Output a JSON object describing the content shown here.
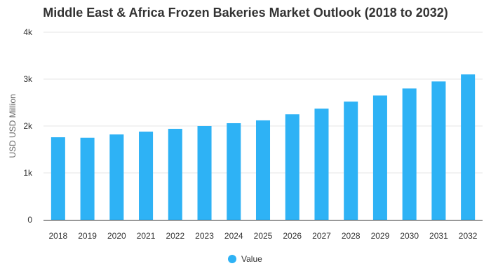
{
  "chart_data": {
    "type": "bar",
    "title": "Middle East & Africa Frozen Bakeries Market Outlook (2018 to 2032)",
    "ylabel": "USD USD Million",
    "xlabel": "",
    "categories": [
      "2018",
      "2019",
      "2020",
      "2021",
      "2022",
      "2023",
      "2024",
      "2025",
      "2026",
      "2027",
      "2028",
      "2029",
      "2030",
      "2031",
      "2032"
    ],
    "series": [
      {
        "name": "Value",
        "values": [
          1760,
          1750,
          1820,
          1880,
          1940,
          2000,
          2060,
          2120,
          2250,
          2370,
          2520,
          2650,
          2800,
          2950,
          3100
        ]
      }
    ],
    "ylim": [
      0,
      4000
    ],
    "yticks": [
      {
        "value": 0,
        "label": "0"
      },
      {
        "value": 1000,
        "label": "1k"
      },
      {
        "value": 2000,
        "label": "2k"
      },
      {
        "value": 3000,
        "label": "3k"
      },
      {
        "value": 4000,
        "label": "4k"
      }
    ],
    "grid": true,
    "legend_position": "bottom",
    "colors": {
      "bar": "#2EB2F5",
      "grid": "#e6e6e6",
      "axis": "#333333"
    }
  }
}
